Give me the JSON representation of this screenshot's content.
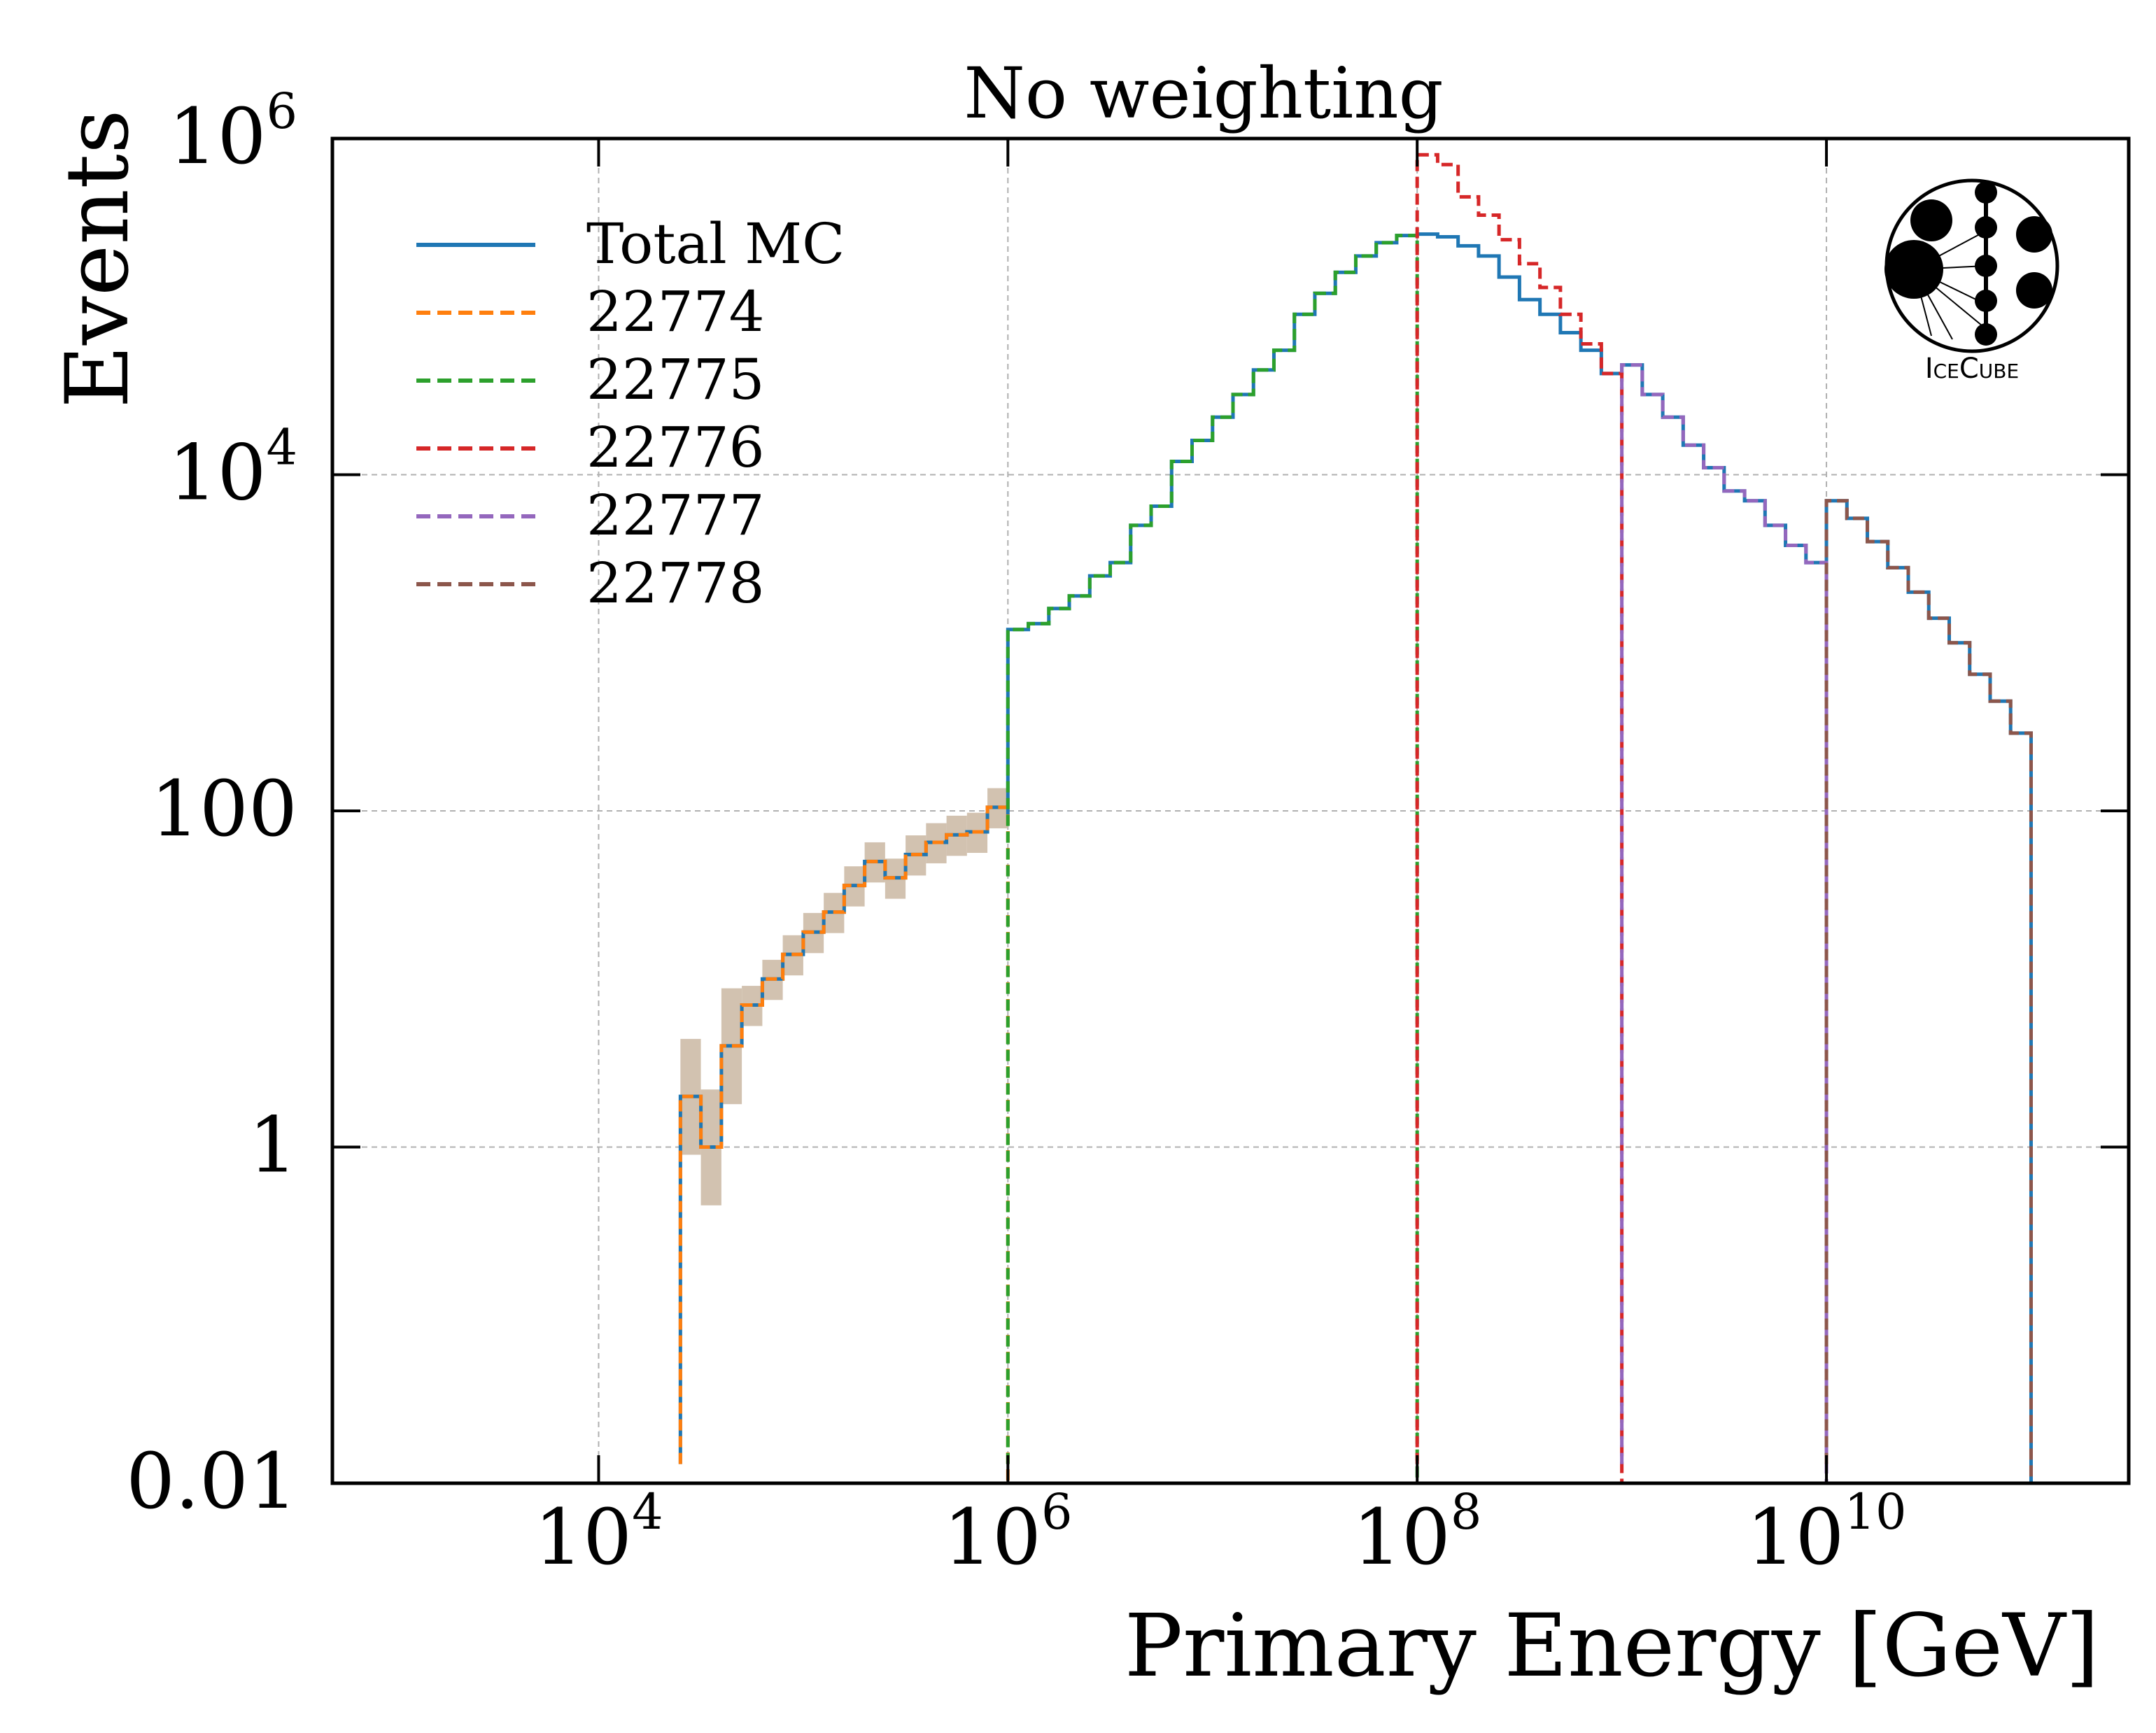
{
  "chart_data": {
    "type": "line",
    "subtype": "step-histogram",
    "title": "No weighting",
    "xlabel": "Primary Energy [GeV]",
    "ylabel": "Events",
    "xscale": "log",
    "yscale": "log",
    "xlim": [
      500,
      300000000000.0
    ],
    "ylim": [
      0.01,
      1000000
    ],
    "grid": true,
    "legend_position": "top-left",
    "x_ticks": [
      {
        "value": 10000,
        "base": "10",
        "exp": "4"
      },
      {
        "value": 1000000,
        "base": "10",
        "exp": "6"
      },
      {
        "value": 100000000,
        "base": "10",
        "exp": "8"
      },
      {
        "value": 10000000000,
        "base": "10",
        "exp": "10"
      }
    ],
    "y_ticks": [
      {
        "value": 0.01,
        "base": "0.01",
        "exp": ""
      },
      {
        "value": 1,
        "base": "1",
        "exp": ""
      },
      {
        "value": 100,
        "base": "100",
        "exp": ""
      },
      {
        "value": 10000,
        "base": "10",
        "exp": "4"
      },
      {
        "value": 1000000,
        "base": "10",
        "exp": "6"
      }
    ],
    "logo_text": "IceCube",
    "series": [
      {
        "name": "Total MC",
        "color": "#1f77b4",
        "dash": "solid",
        "values": [
          [
            25100,
            2.0
          ],
          [
            31600,
            1.0
          ],
          [
            39800,
            4.0
          ],
          [
            50100,
            7.0
          ],
          [
            63100,
            10.0
          ],
          [
            79400,
            14.0
          ],
          [
            100000,
            19.0
          ],
          [
            125900,
            25.0
          ],
          [
            158500,
            36.0
          ],
          [
            199500,
            50.0
          ],
          [
            251200,
            40.0
          ],
          [
            316200,
            55.0
          ],
          [
            398100,
            65.0
          ],
          [
            501200,
            72.0
          ],
          [
            631000,
            75.0
          ],
          [
            794300,
            105.0
          ],
          [
            1000000,
            95.0
          ],
          [
            1000000,
            1200.0
          ],
          [
            1259000,
            1300.0
          ],
          [
            1585000,
            1600.0
          ],
          [
            1995000,
            1900.0
          ],
          [
            2512000,
            2500.0
          ],
          [
            3162000,
            3000.0
          ],
          [
            3981000,
            5000.0
          ],
          [
            5012000,
            6500.0
          ],
          [
            6310000,
            12000.0
          ],
          [
            7943000,
            16000.0
          ],
          [
            10000000,
            22000.0
          ],
          [
            12590000,
            30000.0
          ],
          [
            15850000,
            42000.0
          ],
          [
            19950000,
            55000.0
          ],
          [
            25120000,
            90000.0
          ],
          [
            31620000,
            120000.0
          ],
          [
            39810000,
            160000.0
          ],
          [
            50120000,
            200000.0
          ],
          [
            63100000,
            240000.0
          ],
          [
            79430000,
            265000.0
          ],
          [
            100000000,
            270000.0
          ],
          [
            125900000,
            260000.0
          ],
          [
            158500000,
            230000.0
          ],
          [
            199500000,
            200000.0
          ],
          [
            251200000,
            150000.0
          ],
          [
            316200000,
            110000.0
          ],
          [
            398100000,
            90000.0
          ],
          [
            501200000,
            70000.0
          ],
          [
            631000000,
            55000.0
          ],
          [
            794300000,
            40000.0
          ],
          [
            1000000000,
            45000.0
          ],
          [
            1259000000,
            30000.0
          ],
          [
            1585000000,
            22000.0
          ],
          [
            1995000000,
            15000.0
          ],
          [
            2512000000,
            11000.0
          ],
          [
            3162000000,
            8000.0
          ],
          [
            3981000000,
            7000.0
          ],
          [
            5012000000,
            5000.0
          ],
          [
            6310000000,
            3800.0
          ],
          [
            7943000000,
            3000.0
          ],
          [
            10000000000,
            2000.0
          ],
          [
            10000000000,
            7000.0
          ],
          [
            12590000000,
            5500.0
          ],
          [
            15850000000,
            4000.0
          ],
          [
            19950000000,
            2800.0
          ],
          [
            25120000000,
            2000.0
          ],
          [
            31620000000,
            1400.0
          ],
          [
            39810000000,
            1000.0
          ],
          [
            50120000000,
            650.0
          ],
          [
            63100000000,
            450.0
          ],
          [
            79430000000,
            290.0
          ],
          [
            100000000000,
            180.0
          ],
          [
            100000000000,
            90.0
          ]
        ]
      },
      {
        "name": "22774",
        "color": "#ff7f0e",
        "dash": "dashed",
        "values": [
          [
            25100,
            2.0
          ],
          [
            31600,
            1.0
          ],
          [
            39800,
            4.0
          ],
          [
            50100,
            7.0
          ],
          [
            63100,
            10.0
          ],
          [
            79400,
            14.0
          ],
          [
            100000,
            19.0
          ],
          [
            125900,
            25.0
          ],
          [
            158500,
            36.0
          ],
          [
            199500,
            50.0
          ],
          [
            251200,
            40.0
          ],
          [
            316200,
            55.0
          ],
          [
            398100,
            65.0
          ],
          [
            501200,
            72.0
          ],
          [
            631000,
            75.0
          ],
          [
            794300,
            105.0
          ],
          [
            1000000,
            95.0
          ]
        ]
      },
      {
        "name": "22775",
        "color": "#2ca02c",
        "dash": "dashed",
        "values": [
          [
            1000000,
            1200.0
          ],
          [
            1259000,
            1300.0
          ],
          [
            1585000,
            1600.0
          ],
          [
            1995000,
            1900.0
          ],
          [
            2512000,
            2500.0
          ],
          [
            3162000,
            3000.0
          ],
          [
            3981000,
            5000.0
          ],
          [
            5012000,
            6500.0
          ],
          [
            6310000,
            12000.0
          ],
          [
            7943000,
            16000.0
          ],
          [
            10000000,
            22000.0
          ],
          [
            12590000,
            30000.0
          ],
          [
            15850000,
            42000.0
          ],
          [
            19950000,
            55000.0
          ],
          [
            25120000,
            90000.0
          ],
          [
            31620000,
            120000.0
          ],
          [
            39810000,
            160000.0
          ],
          [
            50120000,
            200000.0
          ],
          [
            63100000,
            240000.0
          ],
          [
            79430000,
            265000.0
          ],
          [
            100000000,
            270000.0
          ]
        ]
      },
      {
        "name": "22776",
        "color": "#d62728",
        "dash": "dashed",
        "values": [
          [
            100000000,
            800000.0
          ],
          [
            125900000,
            700000.0
          ],
          [
            158500000,
            450000.0
          ],
          [
            199500000,
            350000.0
          ],
          [
            251200000,
            250000.0
          ],
          [
            316200000,
            180000.0
          ],
          [
            398100000,
            130000.0
          ],
          [
            501200000,
            90000.0
          ],
          [
            631000000,
            60000.0
          ],
          [
            794300000,
            40000.0
          ],
          [
            1000000000,
            30000.0
          ]
        ]
      },
      {
        "name": "22777",
        "color": "#9467bd",
        "dash": "dashed",
        "values": [
          [
            1000000000,
            45000.0
          ],
          [
            1259000000,
            30000.0
          ],
          [
            1585000000,
            22000.0
          ],
          [
            1995000000,
            15000.0
          ],
          [
            2512000000,
            11000.0
          ],
          [
            3162000000,
            8000.0
          ],
          [
            3981000000,
            7000.0
          ],
          [
            5012000000,
            5000.0
          ],
          [
            6310000000,
            3800.0
          ],
          [
            7943000000,
            3000.0
          ],
          [
            10000000000,
            2000.0
          ]
        ]
      },
      {
        "name": "22778",
        "color": "#8c564b",
        "dash": "dashed",
        "values": [
          [
            10000000000,
            7000.0
          ],
          [
            12590000000,
            5500.0
          ],
          [
            15850000000,
            4000.0
          ],
          [
            19950000000,
            2800.0
          ],
          [
            25120000000,
            2000.0
          ],
          [
            31620000000,
            1400.0
          ],
          [
            39810000000,
            1000.0
          ],
          [
            50120000000,
            650.0
          ],
          [
            63100000000,
            450.0
          ],
          [
            79430000000,
            290.0
          ],
          [
            100000000000,
            180.0
          ],
          [
            100000000000,
            90.0
          ]
        ]
      }
    ]
  }
}
